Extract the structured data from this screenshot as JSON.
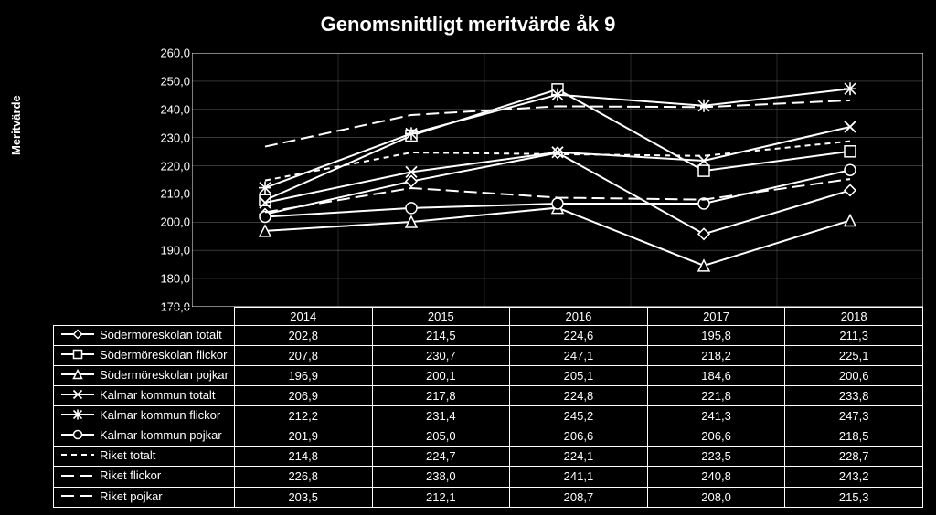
{
  "title": "Genomsnittligt meritvärde åk 9",
  "ylabel": "Meritvärde",
  "background_color": "#000000",
  "text_color": "#ffffff",
  "chart": {
    "type": "line",
    "xlim": [
      0,
      5
    ],
    "ylim": [
      170.0,
      260.0
    ],
    "ytick_step": 10.0,
    "yticks": [
      "170,0",
      "180,0",
      "190,0",
      "200,0",
      "210,0",
      "220,0",
      "230,0",
      "240,0",
      "250,0",
      "260,0"
    ],
    "years": [
      "2014",
      "2015",
      "2016",
      "2017",
      "2018"
    ],
    "grid_color": "#ffffff",
    "series": [
      {
        "id": "s0",
        "label": "Södermöreskolan totalt",
        "values": [
          202.8,
          214.5,
          224.6,
          195.8,
          211.3
        ],
        "dash": "0",
        "marker": "diamond"
      },
      {
        "id": "s1",
        "label": "Södermöreskolan flickor",
        "values": [
          207.8,
          230.7,
          247.1,
          218.2,
          225.1
        ],
        "dash": "0",
        "marker": "square"
      },
      {
        "id": "s2",
        "label": "Södermöreskolan pojkar",
        "values": [
          196.9,
          200.1,
          205.1,
          184.6,
          200.6
        ],
        "dash": "0",
        "marker": "triangle"
      },
      {
        "id": "s3",
        "label": "Kalmar kommun totalt",
        "values": [
          206.9,
          217.8,
          224.8,
          221.8,
          233.8
        ],
        "dash": "0",
        "marker": "x"
      },
      {
        "id": "s4",
        "label": "Kalmar kommun flickor",
        "values": [
          212.2,
          231.4,
          245.2,
          241.3,
          247.3
        ],
        "dash": "0",
        "marker": "star"
      },
      {
        "id": "s5",
        "label": "Kalmar kommun pojkar",
        "values": [
          201.9,
          205.0,
          206.6,
          206.6,
          218.5
        ],
        "dash": "0",
        "marker": "circle"
      },
      {
        "id": "s6",
        "label": "Riket totalt",
        "values": [
          214.8,
          224.7,
          224.1,
          223.5,
          228.7
        ],
        "dash": "6 5",
        "marker": "none"
      },
      {
        "id": "s7",
        "label": "Riket flickor",
        "values": [
          226.8,
          238.0,
          241.1,
          240.8,
          243.2
        ],
        "dash": "14 6",
        "marker": "none"
      },
      {
        "id": "s8",
        "label": "Riket pojkar",
        "values": [
          203.5,
          212.1,
          208.7,
          208.0,
          215.3
        ],
        "dash": "14 6",
        "marker": "none"
      }
    ],
    "line_color": "#ffffff",
    "line_width": 2,
    "marker_size": 6
  }
}
